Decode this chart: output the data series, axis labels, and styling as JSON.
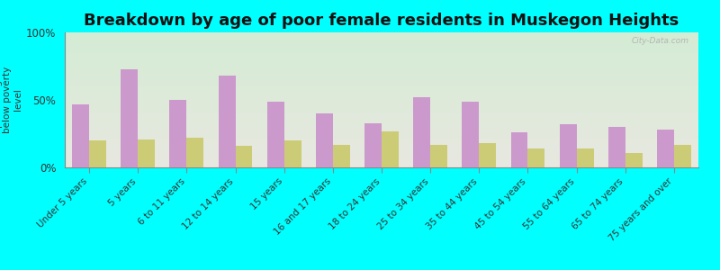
{
  "title": "Breakdown by age of poor female residents in Muskegon Heights",
  "ylabel": "percentage\nbelow poverty\nlevel",
  "categories": [
    "Under 5 years",
    "5 years",
    "6 to 11 years",
    "12 to 14 years",
    "15 years",
    "16 and 17 years",
    "18 to 24 years",
    "25 to 34 years",
    "35 to 44 years",
    "45 to 54 years",
    "55 to 64 years",
    "65 to 74 years",
    "75 years and over"
  ],
  "muskegon_values": [
    47,
    73,
    50,
    68,
    49,
    40,
    33,
    52,
    49,
    26,
    32,
    30,
    28
  ],
  "michigan_values": [
    20,
    21,
    22,
    16,
    20,
    17,
    27,
    17,
    18,
    14,
    14,
    11,
    17
  ],
  "muskegon_color": "#cc99cc",
  "michigan_color": "#cccc77",
  "background_color": "#00ffff",
  "ylim": [
    0,
    100
  ],
  "yticks": [
    0,
    50,
    100
  ],
  "ytick_labels": [
    "0%",
    "50%",
    "100%"
  ],
  "bar_width": 0.35,
  "title_fontsize": 13,
  "label_fontsize": 7.5,
  "watermark": "City-Data.com"
}
